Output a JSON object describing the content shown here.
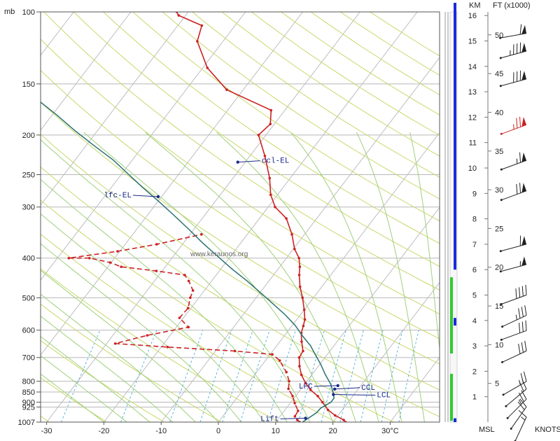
{
  "chart_data": {
    "type": "line",
    "title": "",
    "watermark": "www.keraunos.org",
    "pressure_unit": "mb",
    "pressure_levels": [
      100,
      150,
      200,
      250,
      300,
      400,
      500,
      600,
      700,
      800,
      850,
      900,
      925,
      1007
    ],
    "pressure_labels": [
      "100",
      "150",
      "200",
      "250",
      "300",
      "400",
      "500",
      "600",
      "700",
      "800",
      "850",
      "900",
      "925",
      "1007"
    ],
    "temperature_ticks": [
      -30,
      -20,
      -10,
      0,
      10,
      20,
      30
    ],
    "temperature_tick_labels": [
      "-30",
      "-20",
      "-10",
      "0",
      "10",
      "20",
      "30°C"
    ],
    "xlim": [
      -33,
      40
    ],
    "ylim": [
      1007,
      100
    ],
    "y_scale": "log",
    "skew": "skew-T",
    "series": [
      {
        "role": "temperature",
        "color": "#cc2222",
        "style": "solid",
        "points": [
          [
            22.2,
            1007
          ],
          [
            21.6,
            995
          ],
          [
            19.5,
            970
          ],
          [
            17.5,
            940
          ],
          [
            15.5,
            900
          ],
          [
            13.9,
            870
          ],
          [
            11.8,
            840
          ],
          [
            10.0,
            808
          ],
          [
            8.2,
            772
          ],
          [
            6.7,
            735
          ],
          [
            5.5,
            700
          ],
          [
            5.3,
            675
          ],
          [
            3.8,
            640
          ],
          [
            2.6,
            610
          ],
          [
            2.0,
            586
          ],
          [
            1.4,
            565
          ],
          [
            0.0,
            535
          ],
          [
            -1.9,
            500
          ],
          [
            -3.8,
            470
          ],
          [
            -5.5,
            440
          ],
          [
            -6.5,
            420
          ],
          [
            -7.8,
            400
          ],
          [
            -9.8,
            380
          ],
          [
            -12.2,
            350
          ],
          [
            -15.3,
            320
          ],
          [
            -18.8,
            300
          ],
          [
            -21.2,
            280
          ],
          [
            -23.6,
            255
          ],
          [
            -27.4,
            225
          ],
          [
            -31.3,
            200
          ],
          [
            -30.7,
            188
          ],
          [
            -32.4,
            174
          ],
          [
            -42.9,
            155
          ],
          [
            -49.2,
            137
          ],
          [
            -54.5,
            118
          ],
          [
            -55.8,
            108
          ],
          [
            -61.2,
            102
          ],
          [
            -62.0,
            100
          ]
        ]
      },
      {
        "role": "dewpoint",
        "color": "#cc2222",
        "style": "dashed",
        "points": [
          [
            14.2,
            1007
          ],
          [
            13.5,
            995
          ],
          [
            12.6,
            975
          ],
          [
            12.4,
            945
          ],
          [
            10.8,
            905
          ],
          [
            9.5,
            870
          ],
          [
            7.8,
            835
          ],
          [
            6.9,
            800
          ],
          [
            5.2,
            760
          ],
          [
            2.5,
            712
          ],
          [
            0.4,
            688
          ],
          [
            -6.6,
            675
          ],
          [
            -18.9,
            660
          ],
          [
            -28.5,
            647
          ],
          [
            -24.0,
            618
          ],
          [
            -17.9,
            590
          ],
          [
            -20.7,
            560
          ],
          [
            -20.5,
            530
          ],
          [
            -21.5,
            500
          ],
          [
            -22.0,
            480
          ],
          [
            -24.0,
            455
          ],
          [
            -25.5,
            440
          ],
          [
            -31.0,
            430
          ],
          [
            -37.7,
            420
          ],
          [
            -40.2,
            410
          ],
          [
            -44.4,
            400
          ],
          [
            -48.0,
            400
          ],
          [
            -40.4,
            385
          ],
          [
            -34.5,
            370
          ],
          [
            -28.0,
            350
          ]
        ]
      },
      {
        "role": "parcel",
        "color": "#2a7070",
        "style": "solid",
        "points": [
          [
            14.7,
            1007
          ],
          [
            15.9,
            955
          ],
          [
            16.0,
            931
          ],
          [
            17.0,
            900
          ],
          [
            17.0,
            880
          ],
          [
            16.0,
            850
          ],
          [
            14.5,
            812
          ],
          [
            12.3,
            770
          ],
          [
            10.2,
            728
          ],
          [
            8.0,
            690
          ],
          [
            5.9,
            655
          ],
          [
            3.2,
            620
          ],
          [
            0.5,
            584
          ],
          [
            -2.7,
            550
          ],
          [
            -6.5,
            515
          ],
          [
            -9.8,
            487
          ],
          [
            -13.8,
            455
          ],
          [
            -18.1,
            425
          ],
          [
            -22.4,
            395
          ],
          [
            -26.7,
            367
          ],
          [
            -30.9,
            340
          ],
          [
            -35.6,
            313
          ],
          [
            -40.0,
            290
          ],
          [
            -44.7,
            268
          ],
          [
            -49.1,
            248
          ],
          [
            -53.4,
            230
          ],
          [
            -58.7,
            212
          ],
          [
            -64.0,
            195
          ],
          [
            -69.1,
            179
          ],
          [
            -74.2,
            165
          ]
        ]
      }
    ],
    "annotations": [
      {
        "label": "ccl-EL",
        "temperature": -31.3,
        "pressure": 233
      },
      {
        "label": "lfc-EL",
        "temperature": -40.6,
        "pressure": 283
      },
      {
        "label": "LFC",
        "temperature": 16.0,
        "pressure": 820
      },
      {
        "label": "CCL",
        "temperature": 15.9,
        "pressure": 836
      },
      {
        "label": "LCL",
        "temperature": 16.4,
        "pressure": 862
      },
      {
        "label": "Lift",
        "temperature": 14.7,
        "pressure": 985
      }
    ],
    "height_axis": {
      "km_label": "KM",
      "km_ticks": [
        "1",
        "2",
        "3",
        "4",
        "5",
        "6",
        "7",
        "8",
        "9",
        "10",
        "11",
        "12",
        "13",
        "14",
        "15",
        "16"
      ],
      "ft_label": "FT (x1000)",
      "ft_ticks": [
        "5",
        "10",
        "15",
        "20",
        "25",
        "30",
        "35",
        "40",
        "45",
        "50"
      ],
      "base_label": "MSL",
      "wind_label": "KNOTS"
    },
    "moisture_bar": {
      "green_ranges_km": [
        [
          0.05,
          1.9
        ],
        [
          2.7,
          5.2
        ],
        [
          3.9,
          5.7
        ]
      ],
      "blue_ranges_km": [
        [
          0.0,
          0.15
        ],
        [
          3.8,
          4.1
        ],
        [
          6.0,
          16.5
        ]
      ]
    },
    "wind_barbs": [
      {
        "height_km": 0.2,
        "direction_deg": 205,
        "speed_kt": 15,
        "color": "#222"
      },
      {
        "height_km": 0.6,
        "direction_deg": 215,
        "speed_kt": 20,
        "color": "#222"
      },
      {
        "height_km": 0.9,
        "direction_deg": 225,
        "speed_kt": 25,
        "color": "#222"
      },
      {
        "height_km": 1.3,
        "direction_deg": 230,
        "speed_kt": 20,
        "color": "#222"
      },
      {
        "height_km": 1.6,
        "direction_deg": 240,
        "speed_kt": 25,
        "color": "#222"
      },
      {
        "height_km": 2.8,
        "direction_deg": 245,
        "speed_kt": 30,
        "color": "#222"
      },
      {
        "height_km": 3.6,
        "direction_deg": 250,
        "speed_kt": 30,
        "color": "#222"
      },
      {
        "height_km": 4.2,
        "direction_deg": 245,
        "speed_kt": 35,
        "color": "#222"
      },
      {
        "height_km": 5.0,
        "direction_deg": 250,
        "speed_kt": 40,
        "color": "#222"
      },
      {
        "height_km": 6.2,
        "direction_deg": 255,
        "speed_kt": 55,
        "color": "#222"
      },
      {
        "height_km": 7.0,
        "direction_deg": 255,
        "speed_kt": 60,
        "color": "#222"
      },
      {
        "height_km": 9.1,
        "direction_deg": 250,
        "speed_kt": 70,
        "color": "#222"
      },
      {
        "height_km": 10.3,
        "direction_deg": 250,
        "speed_kt": 65,
        "color": "#222"
      },
      {
        "height_km": 11.7,
        "direction_deg": 250,
        "speed_kt": 75,
        "color": "#cc2222"
      },
      {
        "height_km": 13.5,
        "direction_deg": 255,
        "speed_kt": 80,
        "color": "#222"
      },
      {
        "height_km": 14.6,
        "direction_deg": 255,
        "speed_kt": 85,
        "color": "#222"
      },
      {
        "height_km": 15.3,
        "direction_deg": 260,
        "speed_kt": 60,
        "color": "#222"
      }
    ],
    "colors": {
      "isobar": "#b8b8b8",
      "isotherm": "#bdbdbd",
      "dry_adiabat": "#c8d86a",
      "moist_adiabat": "#9fd07a",
      "mixing_ratio": "#5bb5d8",
      "moisture_green": "#2ecc2e",
      "moisture_blue": "#1a2adb",
      "temperature": "#cc2222",
      "parcel": "#2a7070"
    }
  }
}
